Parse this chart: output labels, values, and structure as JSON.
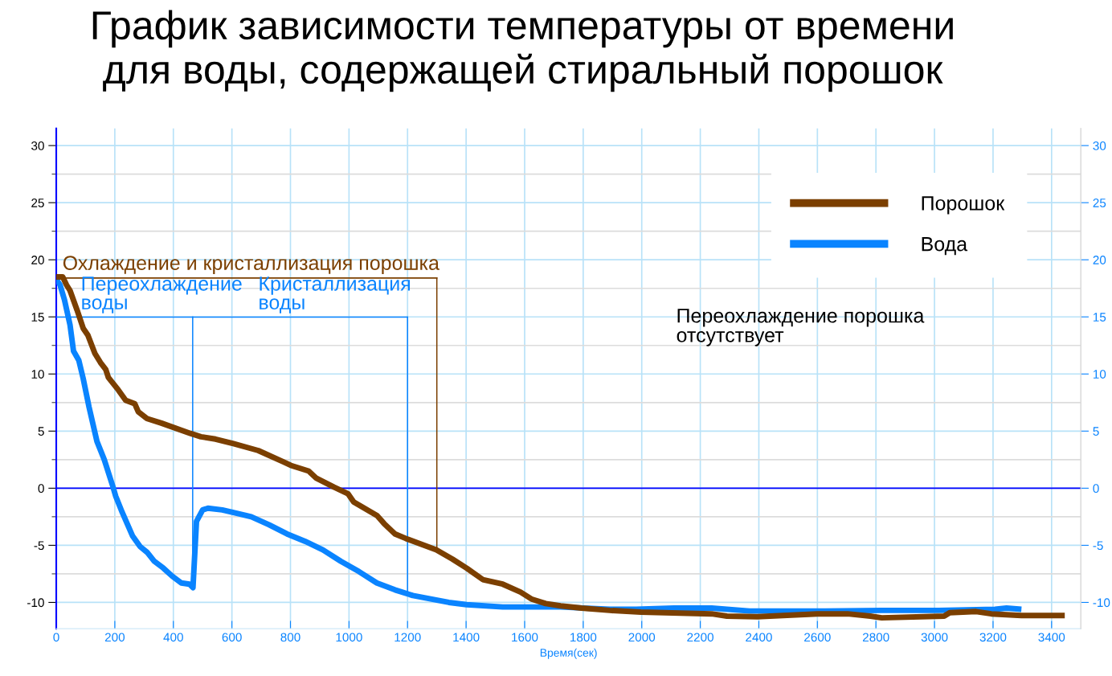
{
  "chart_data": {
    "type": "line",
    "title": "График зависимости температуры от времени\nдля воды, содержащей стиральный порошок",
    "xlabel": "Время(сек)",
    "x": [
      0,
      22,
      35,
      47,
      71,
      92,
      108,
      132,
      151,
      169,
      178,
      212,
      237,
      268,
      280,
      310,
      359,
      458,
      494,
      544,
      605,
      690,
      776,
      801,
      862,
      887,
      948,
      997,
      1016,
      1096,
      1120,
      1157,
      1194,
      1298,
      1353,
      1402,
      1457,
      1525,
      1586,
      1623,
      1672,
      1723,
      1794,
      1891,
      1997,
      2239,
      2291,
      2394,
      2600,
      2703,
      2781,
      2820,
      3033,
      3052,
      3142,
      3194,
      3297,
      3445
    ],
    "series": [
      {
        "name": "Порошок",
        "color": "#7b3f00",
        "values": [
          18.5,
          18.5,
          17.8,
          17.3,
          15.6,
          14.0,
          13.4,
          11.8,
          11.0,
          10.4,
          9.7,
          8.6,
          7.7,
          7.4,
          6.7,
          6.1,
          5.7,
          4.8,
          4.5,
          4.3,
          3.9,
          3.3,
          2.3,
          2.0,
          1.5,
          0.9,
          0.1,
          -0.5,
          -1.2,
          -2.4,
          -3.1,
          -4.0,
          -4.4,
          -5.4,
          -6.2,
          -7.0,
          -8.0,
          -8.4,
          -9.1,
          -9.7,
          -10.1,
          -10.3,
          -10.5,
          -10.7,
          -10.85,
          -11.0,
          -11.2,
          -11.25,
          -11.0,
          -11.0,
          -11.2,
          -11.35,
          -11.2,
          -10.9,
          -10.8,
          -11.0,
          -11.15,
          -11.15
        ]
      },
      {
        "name": "Вода",
        "color": "#0a84ff",
        "x": [
          0,
          13,
          28,
          47,
          59,
          77,
          92,
          112,
          139,
          164,
          194,
          203,
          225,
          261,
          286,
          310,
          335,
          366,
          396,
          427,
          455,
          467,
          479,
          500,
          518,
          567,
          617,
          666,
          727,
          788,
          850,
          911,
          972,
          1034,
          1095,
          1157,
          1218,
          1279,
          1341,
          1402,
          1525,
          1600,
          1723,
          1891,
          1981,
          2110,
          2239,
          2368,
          2497,
          2626,
          2820,
          3013,
          3207,
          3246,
          3297
        ],
        "values": [
          18.3,
          17.8,
          16.5,
          14.3,
          12.0,
          11.2,
          9.6,
          7.1,
          4.1,
          2.5,
          0.1,
          -0.7,
          -2.1,
          -4.2,
          -5.1,
          -5.6,
          -6.4,
          -7.0,
          -7.7,
          -8.3,
          -8.4,
          -8.7,
          -2.9,
          -1.9,
          -1.75,
          -1.9,
          -2.2,
          -2.5,
          -3.2,
          -4.0,
          -4.65,
          -5.4,
          -6.4,
          -7.3,
          -8.3,
          -8.9,
          -9.4,
          -9.7,
          -10.0,
          -10.2,
          -10.4,
          -10.4,
          -10.4,
          -10.6,
          -10.6,
          -10.5,
          -10.5,
          -10.75,
          -10.75,
          -10.75,
          -10.7,
          -10.7,
          -10.6,
          -10.5,
          -10.6
        ]
      }
    ],
    "xlim": [
      0,
      3500
    ],
    "xticks": [
      0,
      200,
      400,
      600,
      800,
      1000,
      1200,
      1400,
      1600,
      1800,
      2000,
      2200,
      2400,
      2600,
      2800,
      3000,
      3200,
      3400
    ],
    "ylim": [
      -12.3,
      31.5
    ],
    "yticks": [
      -10,
      -5,
      0,
      5,
      10,
      15,
      20,
      25,
      30
    ],
    "y2lim": [
      -12.3,
      31.5
    ],
    "y2ticks": [
      -10,
      -5,
      0,
      5,
      10,
      15,
      20,
      25,
      30
    ],
    "ref_lines": [
      {
        "axis": "y",
        "value": 0,
        "color": "#0000ff"
      },
      {
        "axis": "x",
        "value": 1300,
        "label": "Охлаждение и кристаллизация порошка",
        "color": "#7b3f00"
      },
      {
        "axis": "x",
        "value": 466,
        "label": "Переохлаждение\nводы",
        "color": "#0a84ff"
      },
      {
        "axis": "x",
        "value": 1200,
        "label": "Кристаллизация\nводы",
        "color": "#0a84ff"
      }
    ],
    "annotations": [
      "Переохлаждение порошка\nотсутствует"
    ],
    "grid": true,
    "legend": "top right",
    "line_style": "solid",
    "marker": "none"
  }
}
